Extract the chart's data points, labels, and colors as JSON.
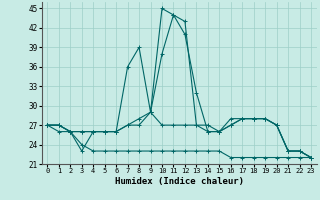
{
  "xlabel": "Humidex (Indice chaleur)",
  "background_color": "#c8ebe5",
  "grid_color": "#9dcfc8",
  "line_color": "#006666",
  "x": [
    0,
    1,
    2,
    3,
    4,
    5,
    6,
    7,
    8,
    9,
    10,
    11,
    12,
    13,
    14,
    15,
    16,
    17,
    18,
    19,
    20,
    21,
    22,
    23
  ],
  "series": [
    [
      27,
      27,
      26,
      26,
      26,
      26,
      26,
      36,
      39,
      29,
      45,
      44,
      41,
      32,
      26,
      26,
      28,
      28,
      28,
      28,
      27,
      23,
      23,
      22
    ],
    [
      27,
      27,
      26,
      23,
      26,
      26,
      26,
      27,
      28,
      29,
      38,
      44,
      43,
      27,
      27,
      26,
      27,
      28,
      28,
      28,
      27,
      23,
      23,
      22
    ],
    [
      27,
      27,
      26,
      26,
      26,
      26,
      26,
      27,
      27,
      29,
      27,
      27,
      27,
      27,
      26,
      26,
      27,
      28,
      28,
      28,
      27,
      23,
      23,
      22
    ],
    [
      27,
      26,
      26,
      24,
      23,
      23,
      23,
      23,
      23,
      23,
      23,
      23,
      23,
      23,
      23,
      23,
      22,
      22,
      22,
      22,
      22,
      22,
      22,
      22
    ]
  ],
  "ylim": [
    21,
    46
  ],
  "xlim": [
    -0.5,
    23.5
  ],
  "yticks": [
    21,
    24,
    27,
    30,
    33,
    36,
    39,
    42,
    45
  ],
  "xticks": [
    0,
    1,
    2,
    3,
    4,
    5,
    6,
    7,
    8,
    9,
    10,
    11,
    12,
    13,
    14,
    15,
    16,
    17,
    18,
    19,
    20,
    21,
    22,
    23
  ],
  "marker": "+",
  "markersize": 3,
  "linewidth": 0.8
}
